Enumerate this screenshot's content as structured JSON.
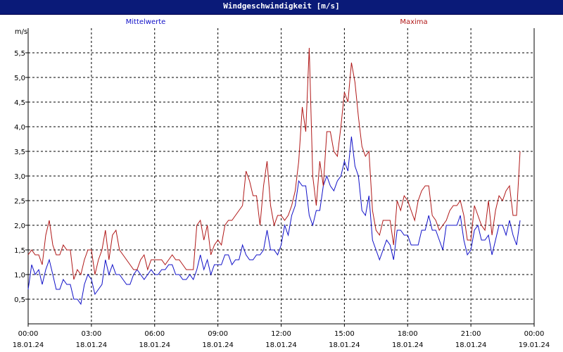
{
  "window": {
    "title": "Windgeschwindigkeit [m/s]"
  },
  "colors": {
    "titlebar": "#0a1a78",
    "mean_series": "#1010c8",
    "max_series": "#b01818",
    "grid": "#000000"
  },
  "chart_data": {
    "type": "line",
    "title": "Windgeschwindigkeit [m/s]",
    "ylabel": "m/s",
    "ylim": [
      0,
      6
    ],
    "y_ticks": [
      "0,5",
      "1,0",
      "1,5",
      "2,0",
      "2,5",
      "3,0",
      "3,5",
      "4,0",
      "4,5",
      "5,0",
      "5,5"
    ],
    "y_tick_values": [
      0.5,
      1.0,
      1.5,
      2.0,
      2.5,
      3.0,
      3.5,
      4.0,
      4.5,
      5.0,
      5.5
    ],
    "x_ticks": [
      {
        "time": "00:00",
        "date": "18.01.24"
      },
      {
        "time": "03:00",
        "date": "18.01.24"
      },
      {
        "time": "06:00",
        "date": "18.01.24"
      },
      {
        "time": "09:00",
        "date": "18.01.24"
      },
      {
        "time": "12:00",
        "date": "18.01.24"
      },
      {
        "time": "15:00",
        "date": "18.01.24"
      },
      {
        "time": "18:00",
        "date": "18.01.24"
      },
      {
        "time": "21:00",
        "date": "18.01.24"
      },
      {
        "time": "00:00",
        "date": "19.01.24"
      }
    ],
    "x_range_hours": [
      0,
      24
    ],
    "sample_interval_minutes": 10,
    "grid": true,
    "legend_placement": "top",
    "series": [
      {
        "name": "Mittelwerte",
        "values": [
          0.7,
          1.2,
          1.0,
          1.1,
          0.8,
          1.1,
          1.3,
          1.0,
          0.7,
          0.7,
          0.9,
          0.8,
          0.8,
          0.5,
          0.5,
          0.4,
          0.8,
          1.0,
          0.9,
          0.6,
          0.7,
          0.8,
          1.3,
          1.0,
          1.2,
          1.0,
          1.0,
          0.9,
          0.8,
          0.8,
          1.0,
          1.1,
          1.0,
          0.9,
          1.0,
          1.1,
          1.0,
          1.0,
          1.1,
          1.1,
          1.2,
          1.2,
          1.0,
          1.0,
          0.9,
          0.9,
          1.0,
          0.9,
          1.1,
          1.4,
          1.1,
          1.3,
          1.0,
          1.2,
          1.2,
          1.2,
          1.4,
          1.4,
          1.2,
          1.3,
          1.3,
          1.6,
          1.4,
          1.3,
          1.3,
          1.4,
          1.4,
          1.5,
          1.9,
          1.5,
          1.5,
          1.4,
          1.6,
          2.0,
          1.8,
          2.2,
          2.4,
          2.9,
          2.8,
          2.8,
          2.2,
          2.0,
          2.3,
          2.3,
          2.8,
          3.0,
          2.8,
          2.7,
          2.9,
          3.0,
          3.3,
          3.1,
          3.8,
          3.2,
          3.0,
          2.3,
          2.2,
          2.6,
          1.7,
          1.5,
          1.3,
          1.5,
          1.7,
          1.6,
          1.3,
          1.9,
          1.9,
          1.8,
          1.8,
          1.6,
          1.6,
          1.6,
          1.9,
          1.9,
          2.2,
          1.9,
          1.9,
          1.7,
          1.5,
          2.0,
          2.0,
          2.0,
          2.0,
          2.2,
          1.7,
          1.4,
          1.5,
          1.9,
          2.0,
          1.7,
          1.7,
          1.8,
          1.4,
          1.7,
          2.0,
          2.0,
          1.8,
          2.1,
          1.8,
          1.6,
          2.1
        ]
      },
      {
        "name": "Maxima",
        "values": [
          1.4,
          1.5,
          1.4,
          1.4,
          1.2,
          1.8,
          2.1,
          1.6,
          1.4,
          1.4,
          1.6,
          1.5,
          1.5,
          0.9,
          1.1,
          1.0,
          1.3,
          1.5,
          1.5,
          1.0,
          1.3,
          1.5,
          1.9,
          1.3,
          1.8,
          1.9,
          1.5,
          1.4,
          1.3,
          1.2,
          1.1,
          1.1,
          1.3,
          1.4,
          1.1,
          1.3,
          1.3,
          1.3,
          1.3,
          1.2,
          1.3,
          1.4,
          1.3,
          1.3,
          1.2,
          1.1,
          1.1,
          1.1,
          2.0,
          2.1,
          1.7,
          2.0,
          1.4,
          1.6,
          1.7,
          1.6,
          2.0,
          2.1,
          2.1,
          2.2,
          2.3,
          2.4,
          3.1,
          2.9,
          2.6,
          2.6,
          2.0,
          2.8,
          3.3,
          2.4,
          2.0,
          2.2,
          2.2,
          2.1,
          2.2,
          2.4,
          2.7,
          3.3,
          4.4,
          3.9,
          5.6,
          3.0,
          2.4,
          3.3,
          2.8,
          3.9,
          3.9,
          3.5,
          3.4,
          4.0,
          4.7,
          4.5,
          5.3,
          4.9,
          4.2,
          3.6,
          3.4,
          3.5,
          2.3,
          1.9,
          1.8,
          2.1,
          2.1,
          2.1,
          1.6,
          2.5,
          2.3,
          2.6,
          2.5,
          2.3,
          2.1,
          2.5,
          2.7,
          2.8,
          2.8,
          2.2,
          2.1,
          1.9,
          2.0,
          2.1,
          2.3,
          2.4,
          2.4,
          2.5,
          2.2,
          1.7,
          1.7,
          2.4,
          2.2,
          2.0,
          1.9,
          2.5,
          1.8,
          2.3,
          2.6,
          2.5,
          2.7,
          2.8,
          2.2,
          2.2,
          3.5
        ]
      }
    ]
  }
}
